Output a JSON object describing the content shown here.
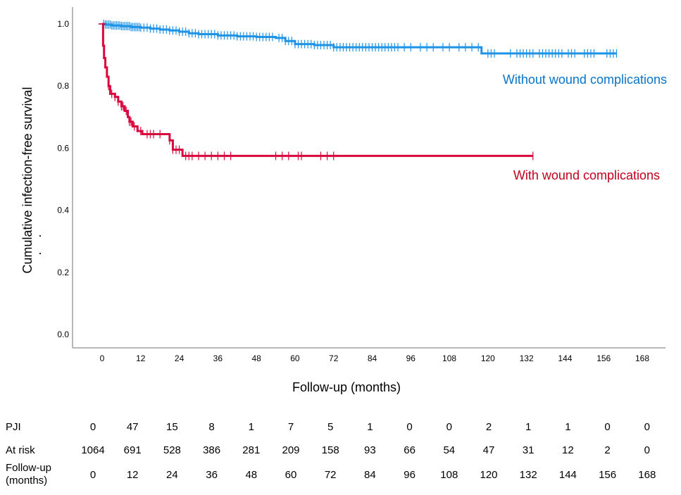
{
  "chart_data": {
    "type": "line",
    "subtype": "kaplan-meier",
    "title": "",
    "xlabel": "Follow-up (months)",
    "ylabel": "Cumulative infection-free survival",
    "xlim": [
      -6,
      172
    ],
    "ylim": [
      -0.05,
      1.05
    ],
    "x_ticks": [
      0,
      12,
      24,
      36,
      48,
      60,
      72,
      84,
      96,
      108,
      120,
      132,
      144,
      156,
      168
    ],
    "y_ticks": [
      "0.0",
      "0.2",
      "0.4",
      "0.6",
      "0.8",
      "1.0"
    ],
    "y_tick_values": [
      0.0,
      0.2,
      0.4,
      0.6,
      0.8,
      1.0
    ],
    "grid": false,
    "series": [
      {
        "name": "Without wound complications",
        "color": "#1f93e6",
        "label_color": "#0a74c8",
        "steps": [
          [
            0,
            1.0
          ],
          [
            1,
            0.998
          ],
          [
            3,
            0.995
          ],
          [
            6,
            0.993
          ],
          [
            9,
            0.99
          ],
          [
            12,
            0.988
          ],
          [
            15,
            0.985
          ],
          [
            18,
            0.982
          ],
          [
            21,
            0.979
          ],
          [
            24,
            0.975
          ],
          [
            27,
            0.97
          ],
          [
            30,
            0.967
          ],
          [
            36,
            0.963
          ],
          [
            42,
            0.96
          ],
          [
            48,
            0.958
          ],
          [
            54,
            0.955
          ],
          [
            57,
            0.945
          ],
          [
            60,
            0.935
          ],
          [
            66,
            0.932
          ],
          [
            72,
            0.925
          ],
          [
            118,
            0.905
          ]
        ],
        "end_x": 160,
        "censor_x": [
          0.5,
          1,
          1.5,
          2,
          2.5,
          3,
          3.5,
          4,
          4.5,
          5,
          5.5,
          6,
          6.5,
          7,
          7.5,
          8,
          8.5,
          9,
          9.5,
          10,
          10.5,
          11,
          11.5,
          12,
          13,
          14,
          15,
          16,
          17,
          18,
          19,
          20,
          21,
          22,
          23,
          24,
          25,
          26,
          27,
          28,
          29,
          30,
          31,
          32,
          33,
          34,
          35,
          36,
          37,
          38,
          39,
          40,
          41,
          42,
          43,
          44,
          45,
          46,
          47,
          48,
          49,
          50,
          51,
          52,
          53,
          55,
          56,
          57,
          58,
          59,
          60,
          61,
          62,
          63,
          64,
          65,
          66,
          67,
          68,
          69,
          70,
          71,
          72,
          73,
          74,
          75,
          76,
          77,
          78,
          79,
          80,
          81,
          82,
          83,
          84,
          85,
          86,
          87,
          88,
          89,
          90,
          91,
          92,
          94,
          96,
          99,
          101,
          103,
          106,
          108,
          111,
          113,
          115,
          117,
          120,
          121,
          122,
          127,
          129,
          130,
          131,
          132,
          133,
          134,
          136,
          137,
          138,
          139,
          140,
          141,
          142,
          143,
          145,
          146,
          147,
          150,
          151,
          152,
          153,
          157,
          158,
          159,
          160
        ]
      },
      {
        "name": "With wound complications",
        "color": "#d8073c",
        "label_color": "#c0001d",
        "steps": [
          [
            0,
            1.0
          ],
          [
            0.3,
            0.93
          ],
          [
            0.6,
            0.89
          ],
          [
            1.0,
            0.86
          ],
          [
            1.5,
            0.83
          ],
          [
            2.0,
            0.8
          ],
          [
            2.5,
            0.775
          ],
          [
            4.0,
            0.765
          ],
          [
            5.0,
            0.75
          ],
          [
            6.0,
            0.735
          ],
          [
            7.0,
            0.72
          ],
          [
            8.0,
            0.7
          ],
          [
            8.5,
            0.685
          ],
          [
            9.5,
            0.67
          ],
          [
            11.0,
            0.655
          ],
          [
            12.5,
            0.645
          ],
          [
            21.0,
            0.625
          ],
          [
            22.0,
            0.595
          ],
          [
            25.0,
            0.575
          ]
        ],
        "end_x": 134,
        "censor_x": [
          2,
          3,
          4,
          5,
          6,
          6.5,
          7.5,
          8.5,
          9,
          10,
          12,
          14,
          15,
          16,
          18,
          21,
          22,
          23,
          24,
          26,
          27,
          28,
          30,
          32,
          34,
          36,
          38,
          40,
          54,
          56,
          58,
          61,
          62,
          68,
          70,
          72,
          134
        ]
      }
    ],
    "annotations": [
      {
        "text": "Without wound complications",
        "series": 0,
        "x": 118,
        "y": 0.82
      },
      {
        "text": "With wound complications",
        "series": 1,
        "x": 122,
        "y": 0.52
      }
    ]
  },
  "risk_table": {
    "rows": [
      {
        "label": "PJI",
        "values": [
          "0",
          "47",
          "15",
          "8",
          "1",
          "7",
          "5",
          "1",
          "0",
          "0",
          "2",
          "1",
          "1",
          "0",
          "0"
        ]
      },
      {
        "label": "At risk",
        "values": [
          "1064",
          "691",
          "528",
          "386",
          "281",
          "209",
          "158",
          "93",
          "66",
          "54",
          "47",
          "31",
          "12",
          "2",
          "0"
        ]
      },
      {
        "label": "Follow-up\n(months)",
        "label_line1": "Follow-up",
        "label_line2": "(months)",
        "values": [
          "0",
          "12",
          "24",
          "36",
          "48",
          "60",
          "72",
          "84",
          "96",
          "108",
          "120",
          "132",
          "144",
          "156",
          "168"
        ]
      }
    ]
  }
}
